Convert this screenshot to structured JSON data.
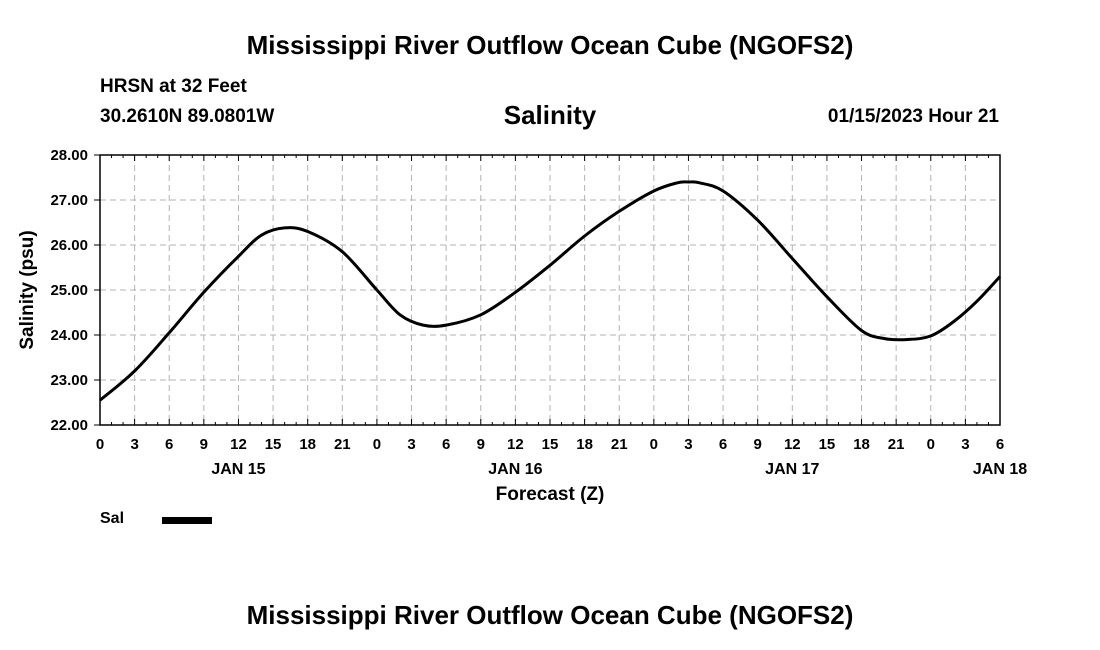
{
  "header": {
    "title": "Mississippi River Outflow Ocean Cube (NGOFS2)",
    "station": "HRSN at 32 Feet",
    "coordinates": "30.2610N  89.0801W",
    "parameter": "Salinity",
    "issued": "01/15/2023 Hour 21"
  },
  "footer": {
    "title": "Mississippi River Outflow Ocean Cube (NGOFS2)"
  },
  "legend": {
    "label": "Sal",
    "color": "#000000"
  },
  "chart_data": {
    "type": "line",
    "title": "Salinity",
    "xlabel": "Forecast (Z)",
    "ylabel": "Salinity (psu)",
    "xlim": [
      0,
      78
    ],
    "ylim": [
      22.0,
      28.0
    ],
    "yticks": [
      "22.00",
      "23.00",
      "24.00",
      "25.00",
      "26.00",
      "27.00",
      "28.00"
    ],
    "ytick_values": [
      22,
      23,
      24,
      25,
      26,
      27,
      28
    ],
    "xtick_labels": [
      "0",
      "3",
      "6",
      "9",
      "12",
      "15",
      "18",
      "21",
      "0",
      "3",
      "6",
      "9",
      "12",
      "15",
      "18",
      "21",
      "0",
      "3",
      "6",
      "9",
      "12",
      "15",
      "18",
      "21",
      "0",
      "3",
      "6"
    ],
    "date_labels": [
      {
        "label": "JAN 15",
        "hour": 12
      },
      {
        "label": "JAN 16",
        "hour": 36
      },
      {
        "label": "JAN 17",
        "hour": 60
      },
      {
        "label": "JAN 18",
        "hour": 78
      }
    ],
    "grid": true,
    "series": [
      {
        "name": "Sal",
        "x": [
          0,
          3,
          6,
          9,
          12,
          14,
          16,
          18,
          21,
          24,
          26,
          28,
          30,
          33,
          36,
          39,
          42,
          45,
          48,
          50,
          51,
          52,
          54,
          57,
          60,
          63,
          66,
          68,
          70,
          72,
          74,
          76,
          78
        ],
        "values": [
          22.55,
          23.2,
          24.05,
          24.95,
          25.75,
          26.22,
          26.38,
          26.3,
          25.85,
          25.0,
          24.45,
          24.22,
          24.22,
          24.45,
          24.95,
          25.55,
          26.2,
          26.75,
          27.2,
          27.38,
          27.4,
          27.38,
          27.2,
          26.55,
          25.7,
          24.85,
          24.1,
          23.92,
          23.9,
          23.98,
          24.3,
          24.75,
          25.3
        ]
      }
    ]
  }
}
